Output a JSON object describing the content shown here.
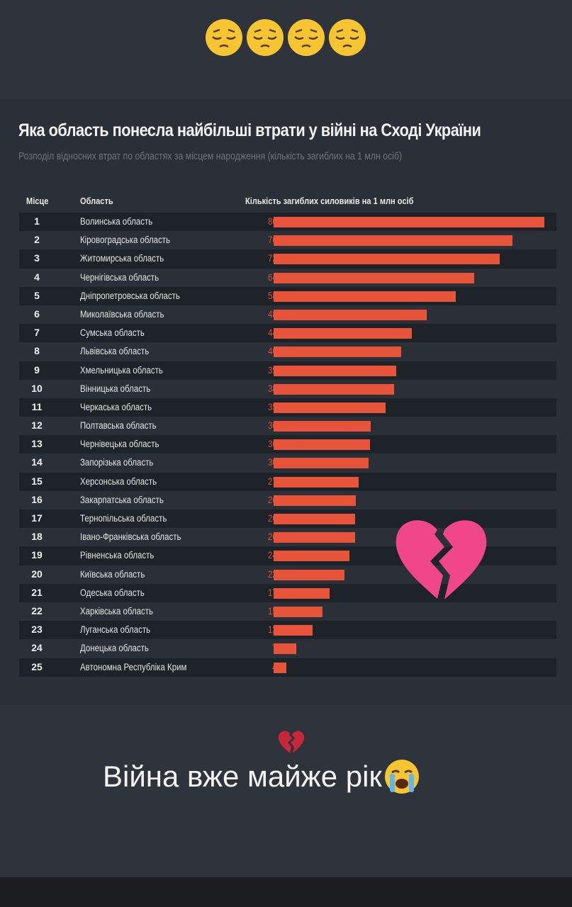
{
  "top_emojis": [
    "pensive-face",
    "pensive-face",
    "pensive-face",
    "pensive-face"
  ],
  "colors": {
    "bar": "#e8543a",
    "value_text": "#d9523c",
    "background": "#2f333b"
  },
  "chart_data": {
    "type": "bar",
    "orientation": "horizontal",
    "title": "Яка область понесла найбільші втрати у війні на Сході України",
    "subtitle": "Розподіл відносних втрат по областях за місцем народження (кількість загиблих на 1 млн осіб)",
    "headers": {
      "rank": "Місце",
      "region": "Область",
      "value": "Кількість загиблих силовиків на 1 млн осіб"
    },
    "ranks": [
      "1",
      "2",
      "3",
      "4",
      "5",
      "6",
      "7",
      "8",
      "9",
      "10",
      "11",
      "12",
      "13",
      "14",
      "15",
      "16",
      "17",
      "18",
      "19",
      "20",
      "21",
      "22",
      "23",
      "24",
      "25"
    ],
    "categories": [
      "Волинська область",
      "Кіровоградська область",
      "Житомирська область",
      "Чернігівська область",
      "Дніпропетровська область",
      "Миколаївська область",
      "Сумська область",
      "Львівська область",
      "Хмельницька область",
      "Вінницька область",
      "Черкаська область",
      "Полтавська область",
      "Чернівецька область",
      "Запорізька область",
      "Херсонська область",
      "Закарпатська область",
      "Тернопільська область",
      "Івано-Франківська область",
      "Рівненська область",
      "Київська область",
      "Одеська область",
      "Харківська область",
      "Луганська область",
      "Донецька область",
      "Автономна Республіка Крим"
    ],
    "values": [
      86.4,
      76.2,
      72.2,
      64.0,
      58.1,
      48.8,
      44.2,
      40.6,
      39.1,
      38.4,
      35.8,
      30.9,
      30.8,
      30.4,
      27.1,
      26.2,
      26.1,
      26.0,
      24.1,
      22.6,
      17.9,
      15.7,
      12.5,
      7.3,
      4.0
    ],
    "value_labels": [
      "86,4",
      "76,2",
      "72,2",
      "64,0",
      "58,1",
      "48,8",
      "44,2",
      "40,6",
      "39,1",
      "38,4",
      "35,8",
      "30,9",
      "30,8",
      "30,4",
      "27,1",
      "26,2",
      "26,1",
      "26,0",
      "24,1",
      "22,6",
      "17,9",
      "15,7",
      "12,5",
      "7,3",
      "4,0"
    ],
    "xlim": [
      0,
      86.4
    ]
  },
  "caption": {
    "text": "Війна вже майже рік"
  }
}
